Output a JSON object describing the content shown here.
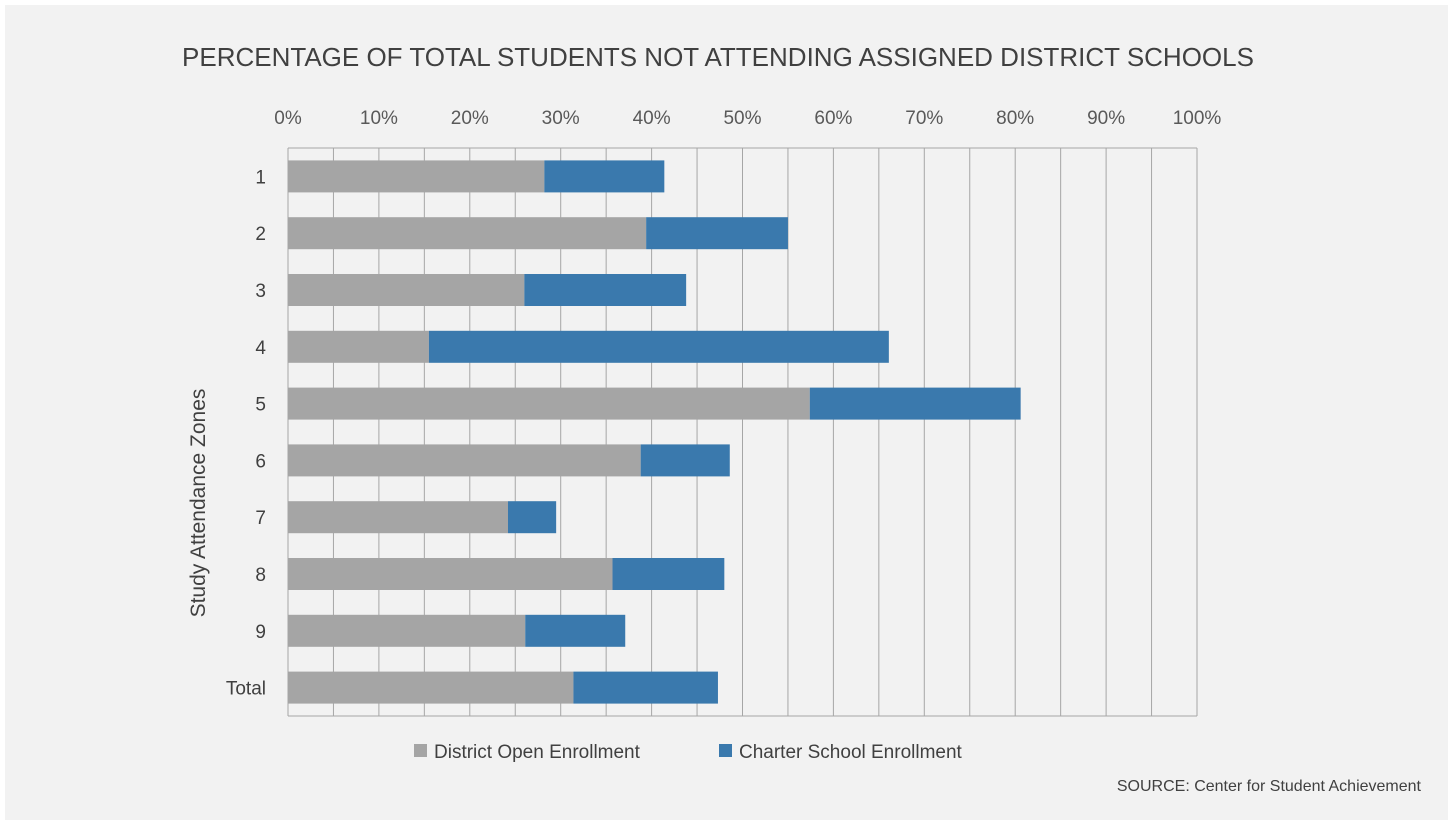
{
  "chart_data": {
    "type": "bar",
    "orientation": "horizontal",
    "stacked": true,
    "title": "PERCENTAGE OF TOTAL STUDENTS NOT ATTENDING ASSIGNED DISTRICT SCHOOLS",
    "ylabel": "Study Attendance Zones",
    "xlabel": "",
    "xlim": [
      0,
      100
    ],
    "x_ticks": [
      "0%",
      "10%",
      "20%",
      "30%",
      "40%",
      "50%",
      "60%",
      "70%",
      "80%",
      "90%",
      "100%"
    ],
    "x_axis_position": "top",
    "grid": true,
    "legend_position": "bottom",
    "categories": [
      "1",
      "2",
      "3",
      "4",
      "5",
      "6",
      "7",
      "8",
      "9",
      "Total"
    ],
    "series": [
      {
        "name": "District Open Enrollment",
        "color": "#a5a5a5",
        "values": [
          28.2,
          39.4,
          26.0,
          15.5,
          57.4,
          38.8,
          24.2,
          35.7,
          26.1,
          31.4
        ]
      },
      {
        "name": "Charter School Enrollment",
        "color": "#3a79ad",
        "values": [
          13.2,
          15.6,
          17.8,
          50.6,
          23.2,
          9.8,
          5.3,
          12.3,
          11.0,
          15.9
        ]
      }
    ],
    "source": "SOURCE: Center for Student Achievement"
  }
}
